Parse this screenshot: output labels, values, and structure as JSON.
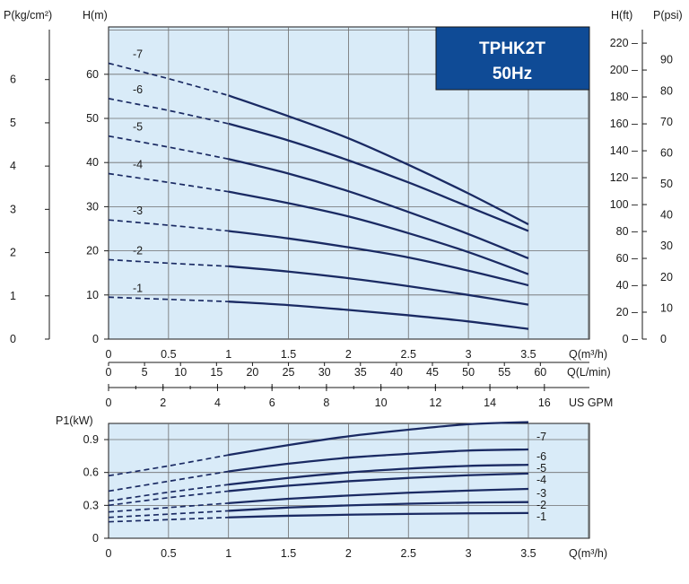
{
  "chart_data": [
    {
      "type": "line",
      "title": "TPHK2T",
      "subtitle": "50Hz",
      "xlabel": "Q(m³/h)",
      "ylabel": "H(m)",
      "xlim": [
        0,
        3.5
      ],
      "ylim": [
        0,
        70
      ],
      "grid": true,
      "x_ticks": [
        "0",
        "0.5",
        "1",
        "1.5",
        "2",
        "2.5",
        "3",
        "3.5"
      ],
      "y_ticks": [
        "0",
        "10",
        "20",
        "30",
        "40",
        "50",
        "60"
      ],
      "secondary_axes": {
        "x_lmin": {
          "label": "Q(L/min)",
          "ticks": [
            "0",
            "5",
            "10",
            "15",
            "20",
            "25",
            "30",
            "35",
            "40",
            "45",
            "50",
            "55",
            "60"
          ]
        },
        "x_gpm": {
          "label": "US GPM",
          "ticks": [
            "0",
            "2",
            "4",
            "6",
            "8",
            "10",
            "12",
            "14",
            "16"
          ]
        },
        "y_pressure_kg": {
          "label": "P(kg/cm²)",
          "ticks": [
            "0",
            "1",
            "2",
            "3",
            "4",
            "5",
            "6"
          ]
        },
        "y_ft": {
          "label": "H(ft)",
          "ticks": [
            "0",
            "20",
            "40",
            "60",
            "80",
            "100",
            "120",
            "140",
            "160",
            "180",
            "200",
            "220"
          ]
        },
        "y_psi": {
          "label": "P(psi)",
          "ticks": [
            "0",
            "10",
            "20",
            "30",
            "40",
            "50",
            "60",
            "70",
            "80",
            "90"
          ]
        }
      },
      "dashed_until_x": 1.0,
      "x": [
        0,
        0.5,
        1.0,
        1.5,
        2.0,
        2.5,
        3.0,
        3.5
      ],
      "series": [
        {
          "name": "-1",
          "values": [
            9.5,
            9.0,
            8.5,
            7.7,
            6.6,
            5.4,
            4.0,
            2.3
          ]
        },
        {
          "name": "-2",
          "values": [
            18.0,
            17.2,
            16.5,
            15.3,
            13.8,
            12.0,
            10.0,
            7.8
          ]
        },
        {
          "name": "-3",
          "values": [
            27.0,
            25.8,
            24.5,
            22.8,
            20.8,
            18.5,
            15.5,
            12.2
          ]
        },
        {
          "name": "-4",
          "values": [
            37.5,
            35.5,
            33.4,
            30.8,
            27.8,
            24.0,
            19.7,
            14.7
          ]
        },
        {
          "name": "-5",
          "values": [
            46.0,
            43.5,
            40.8,
            37.5,
            33.5,
            28.8,
            23.8,
            18.3
          ]
        },
        {
          "name": "-6",
          "values": [
            54.5,
            51.8,
            48.8,
            45.0,
            40.5,
            35.5,
            30.0,
            24.5
          ]
        },
        {
          "name": "-7",
          "values": [
            62.5,
            59.0,
            55.2,
            50.5,
            45.5,
            39.5,
            33.0,
            26.0
          ]
        }
      ]
    },
    {
      "type": "line",
      "xlabel": "Q(m³/h)",
      "ylabel": "P1(kW)",
      "xlim": [
        0,
        3.5
      ],
      "ylim": [
        0,
        1.2
      ],
      "grid": true,
      "x_ticks": [
        "0",
        "0.5",
        "1",
        "1.5",
        "2",
        "2.5",
        "3",
        "3.5"
      ],
      "y_ticks": [
        "0",
        "0.3",
        "0.6",
        "0.9"
      ],
      "dashed_until_x": 1.0,
      "x": [
        0,
        0.5,
        1.0,
        1.5,
        2.0,
        2.5,
        3.0,
        3.5
      ],
      "series": [
        {
          "name": "-1",
          "values": [
            0.15,
            0.17,
            0.19,
            0.205,
            0.215,
            0.222,
            0.227,
            0.23
          ]
        },
        {
          "name": "-2",
          "values": [
            0.19,
            0.22,
            0.25,
            0.28,
            0.3,
            0.315,
            0.325,
            0.33
          ]
        },
        {
          "name": "-3",
          "values": [
            0.24,
            0.28,
            0.32,
            0.36,
            0.39,
            0.415,
            0.435,
            0.45
          ]
        },
        {
          "name": "-4",
          "values": [
            0.3,
            0.37,
            0.43,
            0.48,
            0.52,
            0.55,
            0.575,
            0.59
          ]
        },
        {
          "name": "-5",
          "values": [
            0.34,
            0.42,
            0.49,
            0.55,
            0.6,
            0.635,
            0.66,
            0.67
          ]
        },
        {
          "name": "-6",
          "values": [
            0.43,
            0.52,
            0.61,
            0.68,
            0.735,
            0.77,
            0.8,
            0.81
          ]
        },
        {
          "name": "-7",
          "values": [
            0.57,
            0.66,
            0.76,
            0.85,
            0.93,
            0.99,
            1.04,
            1.06
          ]
        }
      ]
    }
  ],
  "colors": {
    "plot_bg": "#d9ebf8",
    "grid": "#6d6d6d",
    "curve": "#1a2a63",
    "title_box": "#0f4b96",
    "axis": "#1a1a1a"
  }
}
